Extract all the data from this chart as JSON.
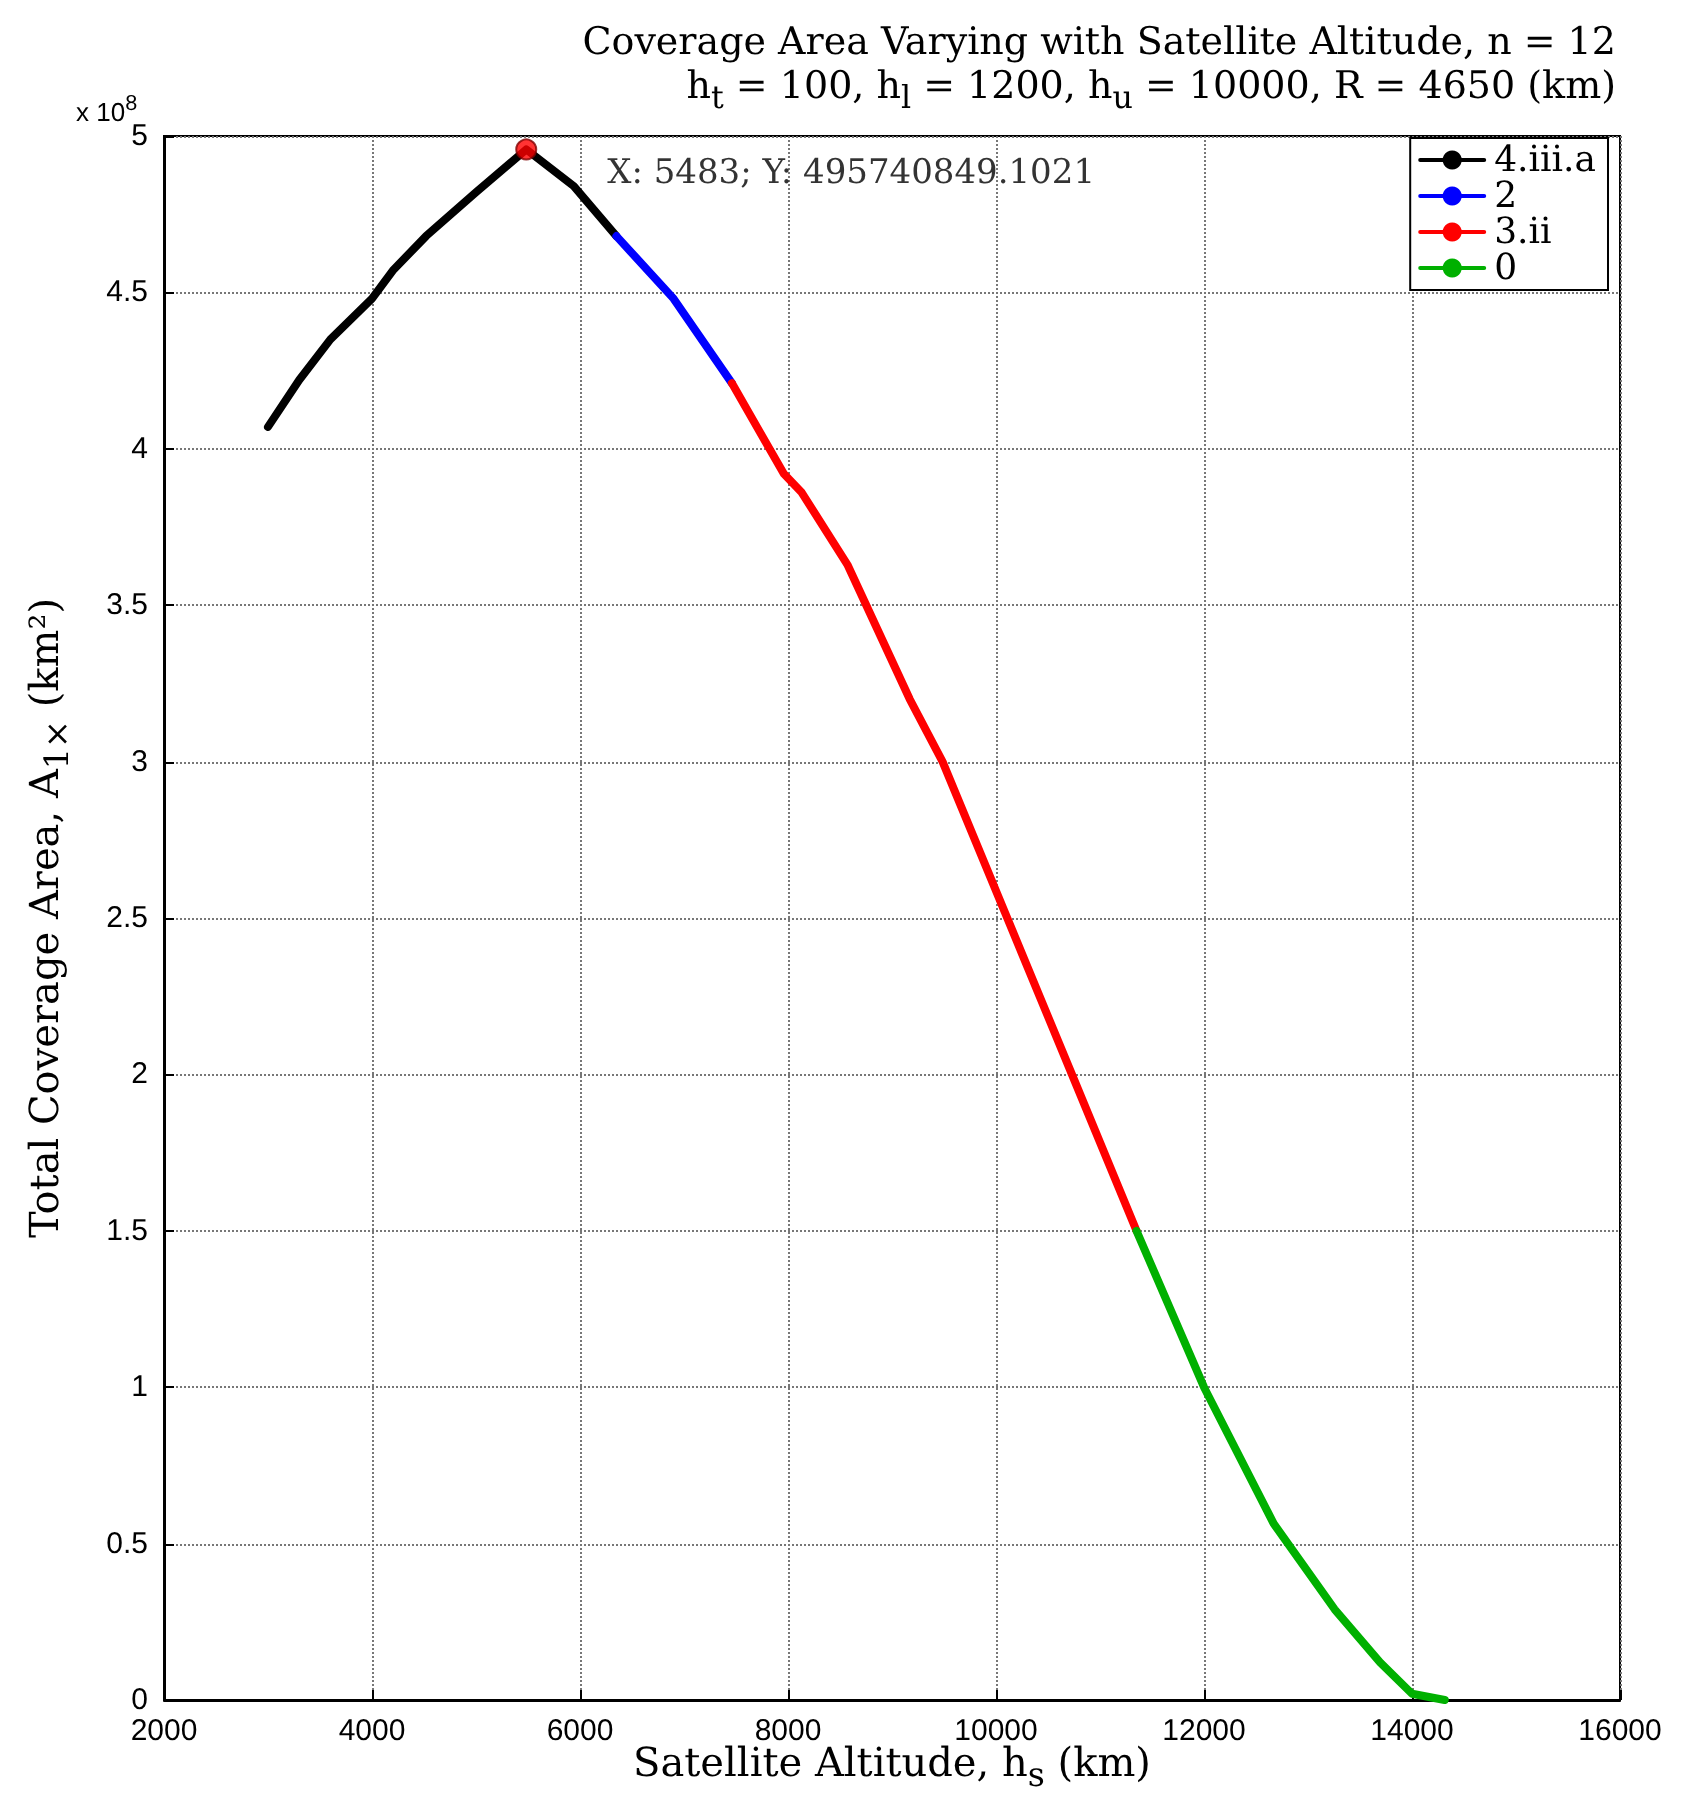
{
  "chart_data": {
    "type": "line",
    "title": "Coverage Area Varying with Satellite Altitude, n = 12",
    "subtitle": "h$_{t}$ = 100, h$_{l}$ = 1200, h$_{u}$ = 10000, R = 4650 (km)",
    "xlabel": "Satellite Altitude, h$_{s}$ (km)",
    "ylabel": "Total Coverage Area, A$_{1×}$ (km²)",
    "series": [
      {
        "name": "4.iii.a",
        "color": "#000000",
        "x": [
          3000,
          3300,
          3600,
          4000,
          4200,
          4520,
          5000,
          5483,
          5940,
          6350
        ],
        "values": [
          4.07,
          4.22,
          4.35,
          4.48,
          4.57,
          4.68,
          4.82,
          4.957,
          4.84,
          4.68
        ]
      },
      {
        "name": "2",
        "color": "#0000ff",
        "x": [
          6350,
          6900,
          7460
        ],
        "values": [
          4.68,
          4.48,
          4.21
        ]
      },
      {
        "name": "3.ii",
        "color": "#ff0000",
        "x": [
          7460,
          7960,
          8132,
          8571,
          9170,
          9486,
          10108,
          10730,
          11351
        ],
        "values": [
          4.21,
          3.92,
          3.86,
          3.63,
          3.2,
          3.0,
          2.5,
          2.0,
          1.5
        ]
      },
      {
        "name": "0",
        "color": "#00b000",
        "x": [
          11351,
          12000,
          12670,
          13256,
          13693,
          14000,
          14315
        ],
        "values": [
          1.5,
          1.0,
          0.564,
          0.29,
          0.12,
          0.02,
          0
        ]
      }
    ],
    "annotations": [
      "x 10$^{8}$",
      {
        "text": "X: 5483; Y: 495740849.1021",
        "x": 5483,
        "y": 4.957
      }
    ],
    "xlim": [
      2000,
      16000
    ],
    "xticks": [
      2000,
      4000,
      6000,
      8000,
      10000,
      12000,
      14000,
      16000
    ],
    "ylim": [
      0,
      5
    ],
    "yticks": [
      0,
      0.5,
      1,
      1.5,
      2,
      2.5,
      3,
      3.5,
      4,
      4.5,
      5
    ],
    "grid": true,
    "legend": "top right",
    "line_style": "solid",
    "marker": "none"
  }
}
